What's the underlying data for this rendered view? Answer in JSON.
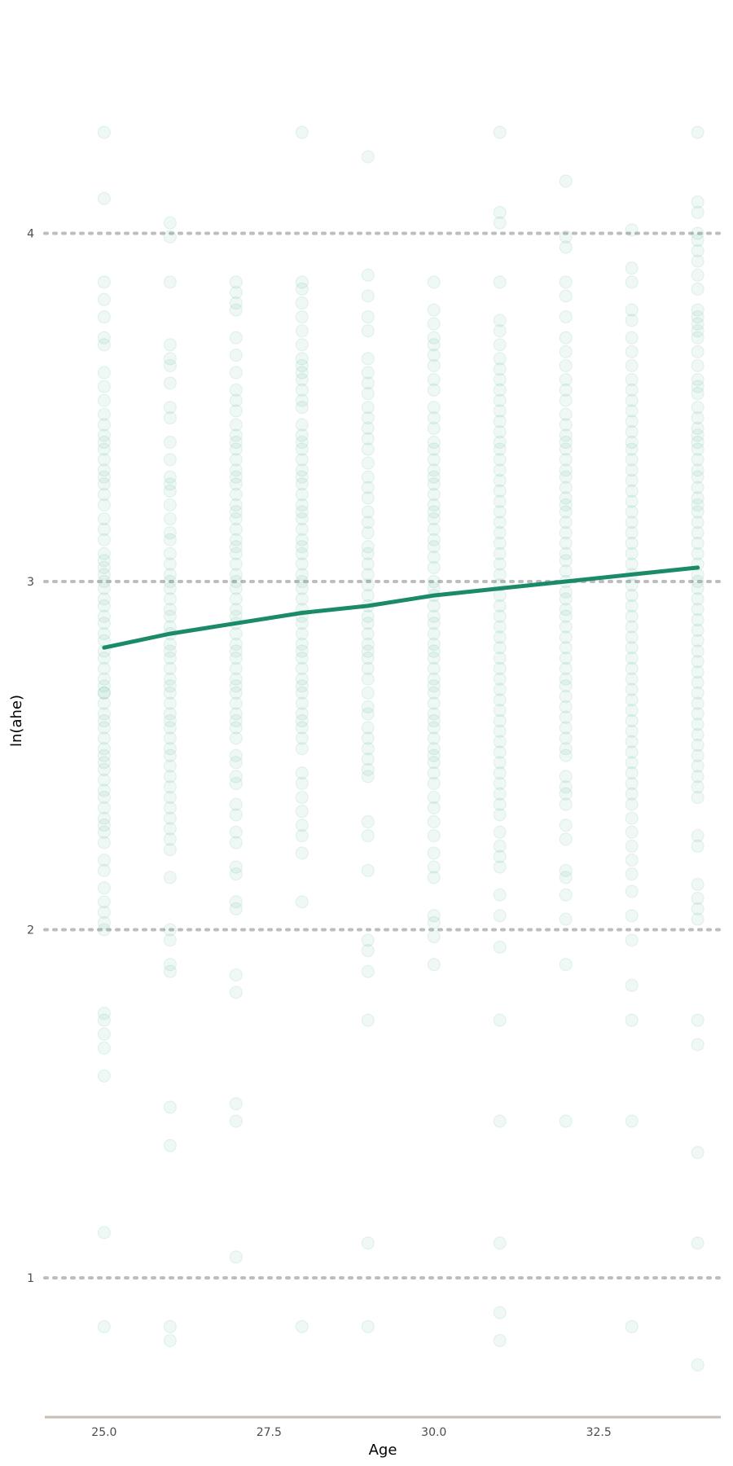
{
  "chart_data": {
    "type": "scatter",
    "xlabel": "Age",
    "ylabel": "ln(ahe)",
    "xlim": [
      24.1,
      34.35
    ],
    "ylim": [
      0.6,
      4.6
    ],
    "x_ticks": [
      25.0,
      27.5,
      30.0,
      32.5
    ],
    "x_tick_labels": [
      "25.0",
      "27.5",
      "30.0",
      "32.5"
    ],
    "y_ticks": [
      1,
      2,
      3,
      4
    ],
    "y_tick_labels": [
      "1",
      "2",
      "3",
      "4"
    ],
    "grid": "horizontal dotted",
    "legend": "none",
    "colors": {
      "points": "#1b9e77",
      "line": "#1b8a68",
      "grid": "#bdbdbd",
      "axis": "#c8bdb3"
    },
    "point_opacity": 0.07,
    "fit_line": {
      "x": [
        25,
        26,
        27,
        28,
        29,
        30,
        31,
        32,
        33,
        34
      ],
      "y": [
        2.81,
        2.85,
        2.88,
        2.91,
        2.93,
        2.96,
        2.98,
        3.0,
        3.02,
        3.04
      ]
    },
    "points": [
      {
        "x": 25,
        "y": [
          4.29,
          4.1,
          3.86,
          3.81,
          3.76,
          3.7,
          3.68,
          3.6,
          3.56,
          3.52,
          3.48,
          3.45,
          3.42,
          3.4,
          3.38,
          3.35,
          3.32,
          3.3,
          3.28,
          3.25,
          3.22,
          3.18,
          3.15,
          3.12,
          3.08,
          3.06,
          3.04,
          3.02,
          3.0,
          2.98,
          2.95,
          2.93,
          2.9,
          2.88,
          2.85,
          2.83,
          2.8,
          2.78,
          2.75,
          2.72,
          2.7,
          2.68,
          2.68,
          2.65,
          2.62,
          2.6,
          2.58,
          2.55,
          2.52,
          2.5,
          2.48,
          2.46,
          2.43,
          2.4,
          2.38,
          2.35,
          2.32,
          2.3,
          2.28,
          2.25,
          2.2,
          2.17,
          2.12,
          2.08,
          2.05,
          2.02,
          2.0,
          1.76,
          1.74,
          1.7,
          1.66,
          1.58,
          1.13,
          0.86
        ]
      },
      {
        "x": 26,
        "y": [
          4.03,
          3.99,
          3.86,
          3.68,
          3.64,
          3.62,
          3.57,
          3.5,
          3.47,
          3.4,
          3.35,
          3.3,
          3.28,
          3.26,
          3.22,
          3.18,
          3.14,
          3.12,
          3.08,
          3.05,
          3.02,
          3.0,
          2.98,
          2.95,
          2.92,
          2.9,
          2.87,
          2.85,
          2.82,
          2.8,
          2.78,
          2.75,
          2.72,
          2.7,
          2.68,
          2.65,
          2.62,
          2.6,
          2.58,
          2.55,
          2.52,
          2.5,
          2.47,
          2.44,
          2.41,
          2.38,
          2.35,
          2.32,
          2.29,
          2.26,
          2.23,
          2.15,
          2.0,
          1.97,
          1.9,
          1.88,
          1.49,
          1.38,
          0.86,
          0.82
        ]
      },
      {
        "x": 27,
        "y": [
          3.86,
          3.83,
          3.8,
          3.78,
          3.7,
          3.65,
          3.6,
          3.55,
          3.52,
          3.49,
          3.45,
          3.42,
          3.4,
          3.38,
          3.35,
          3.32,
          3.3,
          3.28,
          3.25,
          3.22,
          3.2,
          3.18,
          3.15,
          3.12,
          3.1,
          3.08,
          3.05,
          3.02,
          3.0,
          2.98,
          2.95,
          2.92,
          2.9,
          2.88,
          2.85,
          2.82,
          2.8,
          2.78,
          2.75,
          2.72,
          2.7,
          2.68,
          2.65,
          2.62,
          2.6,
          2.58,
          2.55,
          2.5,
          2.48,
          2.44,
          2.42,
          2.36,
          2.33,
          2.28,
          2.25,
          2.18,
          2.16,
          2.08,
          2.06,
          1.87,
          1.82,
          1.5,
          1.45,
          1.06
        ]
      },
      {
        "x": 28,
        "y": [
          4.29,
          3.86,
          3.84,
          3.8,
          3.76,
          3.72,
          3.68,
          3.64,
          3.62,
          3.6,
          3.58,
          3.55,
          3.52,
          3.5,
          3.45,
          3.42,
          3.4,
          3.38,
          3.35,
          3.32,
          3.3,
          3.28,
          3.25,
          3.22,
          3.2,
          3.18,
          3.15,
          3.12,
          3.1,
          3.08,
          3.05,
          3.02,
          3.0,
          2.98,
          2.95,
          2.92,
          2.9,
          2.88,
          2.85,
          2.82,
          2.8,
          2.78,
          2.75,
          2.72,
          2.7,
          2.68,
          2.65,
          2.62,
          2.6,
          2.58,
          2.55,
          2.52,
          2.45,
          2.42,
          2.38,
          2.34,
          2.3,
          2.27,
          2.22,
          2.08,
          0.86
        ]
      },
      {
        "x": 29,
        "y": [
          4.22,
          3.88,
          3.82,
          3.76,
          3.72,
          3.64,
          3.6,
          3.57,
          3.54,
          3.5,
          3.47,
          3.44,
          3.41,
          3.38,
          3.34,
          3.3,
          3.27,
          3.24,
          3.2,
          3.17,
          3.14,
          3.1,
          3.08,
          3.05,
          3.02,
          2.99,
          2.96,
          2.93,
          2.9,
          2.88,
          2.85,
          2.82,
          2.8,
          2.78,
          2.75,
          2.72,
          2.68,
          2.64,
          2.62,
          2.58,
          2.55,
          2.52,
          2.49,
          2.46,
          2.44,
          2.31,
          2.27,
          2.17,
          1.97,
          1.94,
          1.88,
          1.74,
          1.1,
          0.86
        ]
      },
      {
        "x": 30,
        "y": [
          3.86,
          3.78,
          3.74,
          3.7,
          3.68,
          3.65,
          3.62,
          3.58,
          3.55,
          3.5,
          3.47,
          3.44,
          3.4,
          3.38,
          3.35,
          3.32,
          3.3,
          3.28,
          3.25,
          3.22,
          3.2,
          3.18,
          3.15,
          3.12,
          3.1,
          3.07,
          3.04,
          3.0,
          2.98,
          2.96,
          2.93,
          2.9,
          2.88,
          2.85,
          2.82,
          2.8,
          2.78,
          2.75,
          2.72,
          2.7,
          2.68,
          2.65,
          2.62,
          2.6,
          2.58,
          2.55,
          2.52,
          2.5,
          2.48,
          2.45,
          2.42,
          2.38,
          2.35,
          2.31,
          2.27,
          2.22,
          2.18,
          2.15,
          2.04,
          2.02,
          1.98,
          1.9
        ]
      },
      {
        "x": 31,
        "y": [
          4.29,
          4.06,
          4.03,
          3.86,
          3.75,
          3.72,
          3.68,
          3.64,
          3.61,
          3.58,
          3.55,
          3.52,
          3.49,
          3.46,
          3.43,
          3.4,
          3.38,
          3.35,
          3.32,
          3.29,
          3.26,
          3.23,
          3.2,
          3.17,
          3.14,
          3.11,
          3.08,
          3.05,
          3.02,
          2.99,
          2.96,
          2.93,
          2.9,
          2.87,
          2.84,
          2.81,
          2.78,
          2.75,
          2.72,
          2.69,
          2.66,
          2.63,
          2.6,
          2.57,
          2.54,
          2.51,
          2.48,
          2.45,
          2.42,
          2.39,
          2.36,
          2.33,
          2.28,
          2.24,
          2.21,
          2.18,
          2.1,
          2.04,
          1.95,
          1.74,
          1.45,
          1.1,
          0.9,
          0.82
        ]
      },
      {
        "x": 32,
        "y": [
          4.15,
          3.99,
          3.96,
          3.86,
          3.82,
          3.76,
          3.7,
          3.66,
          3.62,
          3.58,
          3.55,
          3.52,
          3.48,
          3.45,
          3.42,
          3.4,
          3.38,
          3.35,
          3.32,
          3.3,
          3.27,
          3.24,
          3.22,
          3.2,
          3.17,
          3.14,
          3.11,
          3.08,
          3.06,
          3.03,
          3.0,
          2.97,
          2.95,
          2.92,
          2.9,
          2.87,
          2.84,
          2.81,
          2.78,
          2.75,
          2.72,
          2.7,
          2.67,
          2.64,
          2.61,
          2.58,
          2.55,
          2.52,
          2.5,
          2.44,
          2.41,
          2.39,
          2.36,
          2.3,
          2.26,
          2.17,
          2.15,
          2.1,
          2.03,
          1.9,
          1.45
        ]
      },
      {
        "x": 33,
        "y": [
          4.01,
          3.9,
          3.86,
          3.78,
          3.75,
          3.7,
          3.66,
          3.62,
          3.58,
          3.55,
          3.52,
          3.49,
          3.46,
          3.43,
          3.4,
          3.38,
          3.35,
          3.32,
          3.29,
          3.26,
          3.23,
          3.2,
          3.17,
          3.14,
          3.11,
          3.08,
          3.05,
          3.02,
          2.99,
          2.96,
          2.93,
          2.9,
          2.87,
          2.84,
          2.81,
          2.78,
          2.75,
          2.72,
          2.69,
          2.66,
          2.63,
          2.6,
          2.57,
          2.54,
          2.51,
          2.48,
          2.45,
          2.42,
          2.39,
          2.36,
          2.32,
          2.28,
          2.24,
          2.2,
          2.16,
          2.11,
          2.04,
          1.97,
          1.84,
          1.74,
          1.45,
          0.86
        ]
      },
      {
        "x": 34,
        "y": [
          4.29,
          4.09,
          4.06,
          4.0,
          3.98,
          3.95,
          3.92,
          3.88,
          3.84,
          3.78,
          3.76,
          3.74,
          3.72,
          3.7,
          3.66,
          3.62,
          3.58,
          3.56,
          3.54,
          3.5,
          3.47,
          3.44,
          3.42,
          3.4,
          3.38,
          3.35,
          3.32,
          3.3,
          3.27,
          3.24,
          3.22,
          3.2,
          3.17,
          3.14,
          3.11,
          3.08,
          3.05,
          3.02,
          3.0,
          2.98,
          2.95,
          2.92,
          2.89,
          2.86,
          2.83,
          2.8,
          2.77,
          2.74,
          2.71,
          2.68,
          2.65,
          2.62,
          2.59,
          2.56,
          2.53,
          2.5,
          2.47,
          2.44,
          2.41,
          2.38,
          2.27,
          2.24,
          2.13,
          2.09,
          2.06,
          2.03,
          1.74,
          1.67,
          1.36,
          1.1,
          0.75
        ]
      }
    ]
  }
}
